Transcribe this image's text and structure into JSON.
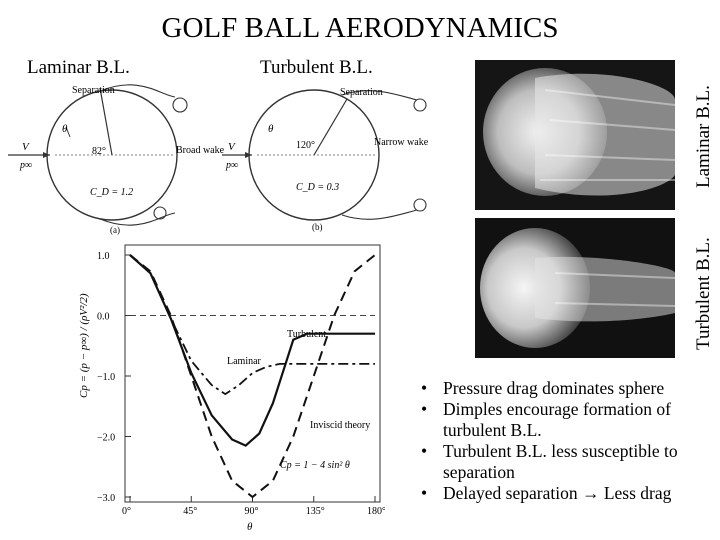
{
  "title": "GOLF BALL AERODYNAMICS",
  "label_laminar": "Laminar B.L.",
  "label_turbulent": "Turbulent B.L.",
  "photo_top_label": "Laminar B.L.",
  "photo_bottom_label": "Turbulent B.L.",
  "diagram_a": {
    "separation": "Separation",
    "theta": "θ",
    "angle": "82°",
    "v": "V",
    "p_inf": "p∞",
    "wake": "Broad wake",
    "cd": "C_D = 1.2",
    "caption": "(a)"
  },
  "diagram_b": {
    "separation": "Separation",
    "theta": "θ",
    "angle": "120°",
    "v": "V",
    "p_inf": "p∞",
    "wake": "Narrow wake",
    "cd": "C_D = 0.3",
    "caption": "(b)"
  },
  "bullets": [
    "Pressure drag dominates sphere",
    "Dimples encourage formation of turbulent B.L.",
    "Turbulent B.L. less susceptible to separation",
    "Delayed separation → Less drag"
  ],
  "chart_data": {
    "type": "line",
    "title": "",
    "xlabel": "θ",
    "ylabel": "Cp = (p − p∞) / (ρV²/2)",
    "x_ticks": [
      "0°",
      "45°",
      "90°",
      "135°",
      "180°"
    ],
    "y_ticks": [
      "1.0",
      "0.0",
      "−1.0",
      "−2.0",
      "−3.0"
    ],
    "xlim": [
      0,
      180
    ],
    "ylim": [
      -3,
      1
    ],
    "annotations": [
      "Turbulent",
      "Laminar",
      "Inviscid theory",
      "Cp = 1 − 4 sin² θ"
    ],
    "series": [
      {
        "name": "Inviscid theory",
        "style": "dashed",
        "x": [
          0,
          15,
          30,
          45,
          60,
          75,
          90,
          105,
          120,
          135,
          150,
          165,
          180
        ],
        "y": [
          1.0,
          0.73,
          0.0,
          -1.0,
          -2.0,
          -2.73,
          -3.0,
          -2.73,
          -2.0,
          -1.0,
          0.0,
          0.73,
          1.0
        ]
      },
      {
        "name": "Turbulent",
        "style": "solid",
        "x": [
          0,
          15,
          30,
          45,
          60,
          75,
          85,
          95,
          105,
          115,
          120,
          130,
          140,
          150,
          165,
          180
        ],
        "y": [
          1.0,
          0.7,
          -0.05,
          -0.95,
          -1.65,
          -2.05,
          -2.15,
          -1.95,
          -1.45,
          -0.75,
          -0.4,
          -0.3,
          -0.3,
          -0.3,
          -0.3,
          -0.3
        ]
      },
      {
        "name": "Laminar",
        "style": "dashdot",
        "x": [
          0,
          15,
          30,
          45,
          60,
          70,
          80,
          90,
          100,
          110,
          120,
          140,
          160,
          180
        ],
        "y": [
          1.0,
          0.7,
          -0.05,
          -0.75,
          -1.15,
          -1.3,
          -1.15,
          -0.95,
          -0.85,
          -0.8,
          -0.8,
          -0.8,
          -0.8,
          -0.8
        ]
      }
    ]
  }
}
